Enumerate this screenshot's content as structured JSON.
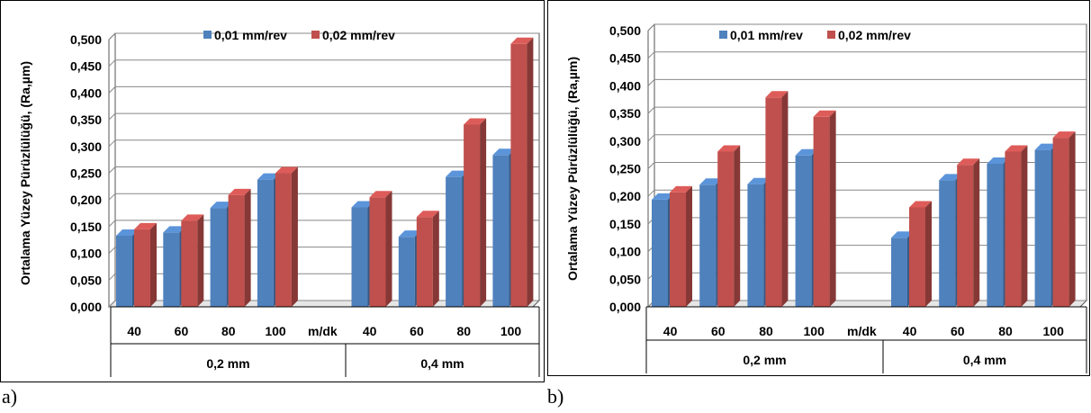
{
  "panels": [
    {
      "id": "a",
      "label": "a)",
      "ylabel": "Ortalama Yüzey Pürüzlülüğü, (Ra,µm)"
    },
    {
      "id": "b",
      "label": "b)",
      "ylabel": "Ortalama Yüzey Pürüzlülüğü, (Ra,µm)"
    }
  ],
  "colors": {
    "series1": "#4f81bd",
    "series2": "#c0504d"
  },
  "chart_data": [
    {
      "type": "bar",
      "ylabel": "Ortalama Yüzey Pürüzlülüğü, (Ra,µm)",
      "ylim": [
        0,
        0.5
      ],
      "yticks": [
        "0,000",
        "0,050",
        "0,100",
        "0,150",
        "0,200",
        "0,250",
        "0,300",
        "0,350",
        "0,400",
        "0,450",
        "0,500"
      ],
      "categories": [
        "40",
        "60",
        "80",
        "100",
        "m/dk",
        "40",
        "60",
        "80",
        "100"
      ],
      "groups": [
        "0,2 mm",
        "0,4 mm"
      ],
      "legend": "top",
      "grid": true,
      "series": [
        {
          "name": "0,01 mm/rev",
          "values": [
            0.133,
            0.139,
            0.185,
            0.238,
            null,
            0.186,
            0.131,
            0.243,
            0.284
          ]
        },
        {
          "name": "0,02 mm/rev",
          "values": [
            0.145,
            0.161,
            0.209,
            0.25,
            null,
            0.205,
            0.168,
            0.341,
            0.492
          ]
        }
      ]
    },
    {
      "type": "bar",
      "ylabel": "Ortalama Yüzey Pürüzlülüğü, (Ra,µm)",
      "ylim": [
        0,
        0.5
      ],
      "yticks": [
        "0,000",
        "0,050",
        "0,100",
        "0,150",
        "0,200",
        "0,250",
        "0,300",
        "0,350",
        "0,400",
        "0,450",
        "0,500"
      ],
      "categories": [
        "40",
        "60",
        "80",
        "100",
        "m/dk",
        "40",
        "60",
        "80",
        "100"
      ],
      "groups": [
        "0,2 mm",
        "0,4 mm"
      ],
      "legend": "top",
      "grid": true,
      "series": [
        {
          "name": "0,01 mm/rev",
          "values": [
            0.194,
            0.221,
            0.222,
            0.274,
            null,
            0.125,
            0.229,
            0.259,
            0.284
          ]
        },
        {
          "name": "0,02 mm/rev",
          "values": [
            0.207,
            0.281,
            0.379,
            0.344,
            null,
            0.18,
            0.257,
            0.281,
            0.306
          ]
        }
      ]
    }
  ]
}
